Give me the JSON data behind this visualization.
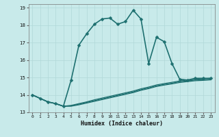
{
  "xlabel": "Humidex (Indice chaleur)",
  "bg_color": "#c8eaea",
  "grid_color": "#b0d8d8",
  "line_color": "#1e7070",
  "xlim": [
    -0.5,
    23.5
  ],
  "ylim": [
    13,
    19.2
  ],
  "yticks": [
    13,
    14,
    15,
    16,
    17,
    18,
    19
  ],
  "xticks": [
    0,
    1,
    2,
    3,
    4,
    5,
    6,
    7,
    8,
    9,
    10,
    11,
    12,
    13,
    14,
    15,
    16,
    17,
    18,
    19,
    20,
    21,
    22,
    23
  ],
  "main_x": [
    0,
    1,
    2,
    3,
    4,
    5,
    6,
    7,
    8,
    9,
    10,
    11,
    12,
    13,
    14,
    15,
    16,
    17,
    18,
    19,
    20,
    21,
    22,
    23
  ],
  "main_y": [
    14.0,
    13.8,
    13.6,
    13.5,
    13.35,
    14.85,
    16.85,
    17.5,
    18.05,
    18.35,
    18.4,
    18.05,
    18.2,
    18.85,
    18.35,
    15.8,
    17.3,
    17.05,
    15.8,
    14.9,
    14.85,
    14.95,
    14.95,
    14.95
  ],
  "flat1_x": [
    0,
    1,
    2,
    3,
    4,
    5,
    6,
    7,
    8,
    9,
    10,
    11,
    12,
    13,
    14,
    15,
    16,
    17,
    18,
    19,
    20,
    21,
    22,
    23
  ],
  "flat1_y": [
    14.0,
    13.8,
    13.6,
    13.5,
    13.35,
    13.4,
    13.5,
    13.6,
    13.72,
    13.82,
    13.92,
    14.02,
    14.12,
    14.22,
    14.35,
    14.45,
    14.57,
    14.65,
    14.72,
    14.8,
    14.85,
    14.9,
    14.92,
    14.95
  ],
  "flat2_x": [
    0,
    1,
    2,
    3,
    4,
    5,
    6,
    7,
    8,
    9,
    10,
    11,
    12,
    13,
    14,
    15,
    16,
    17,
    18,
    19,
    20,
    21,
    22,
    23
  ],
  "flat2_y": [
    14.0,
    13.8,
    13.6,
    13.5,
    13.35,
    13.37,
    13.47,
    13.57,
    13.67,
    13.77,
    13.87,
    13.97,
    14.07,
    14.17,
    14.3,
    14.4,
    14.52,
    14.6,
    14.67,
    14.75,
    14.8,
    14.85,
    14.87,
    14.9
  ],
  "flat3_x": [
    0,
    1,
    2,
    3,
    4,
    5,
    6,
    7,
    8,
    9,
    10,
    11,
    12,
    13,
    14,
    15,
    16,
    17,
    18,
    19,
    20,
    21,
    22,
    23
  ],
  "flat3_y": [
    14.0,
    13.8,
    13.6,
    13.5,
    13.35,
    13.35,
    13.43,
    13.53,
    13.63,
    13.73,
    13.83,
    13.93,
    14.03,
    14.13,
    14.26,
    14.36,
    14.48,
    14.56,
    14.63,
    14.71,
    14.76,
    14.81,
    14.83,
    14.86
  ]
}
